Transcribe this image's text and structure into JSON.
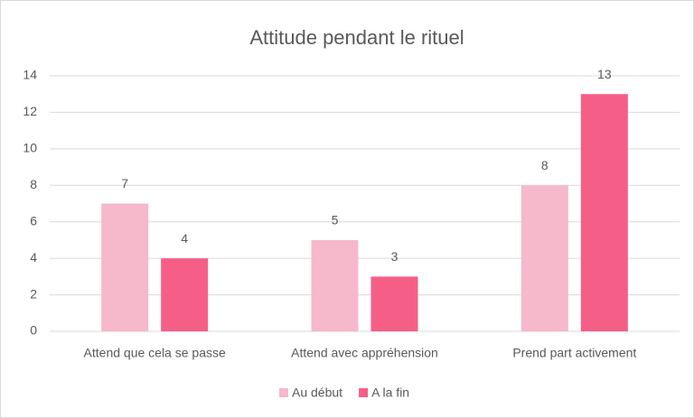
{
  "chart_data": {
    "type": "bar",
    "title": "Attitude pendant le rituel",
    "categories": [
      "Attend que cela se passe",
      "Attend avec appréhension",
      "Prend part activement"
    ],
    "series": [
      {
        "name": "Au début",
        "color": "#f6b8cb",
        "values": [
          7,
          5,
          8
        ]
      },
      {
        "name": "A la fin",
        "color": "#f55f87",
        "values": [
          4,
          3,
          13
        ]
      }
    ],
    "ylim": [
      0,
      14
    ],
    "yticks": [
      0,
      2,
      4,
      6,
      8,
      10,
      12,
      14
    ],
    "grid": true,
    "legend": "bottom"
  }
}
